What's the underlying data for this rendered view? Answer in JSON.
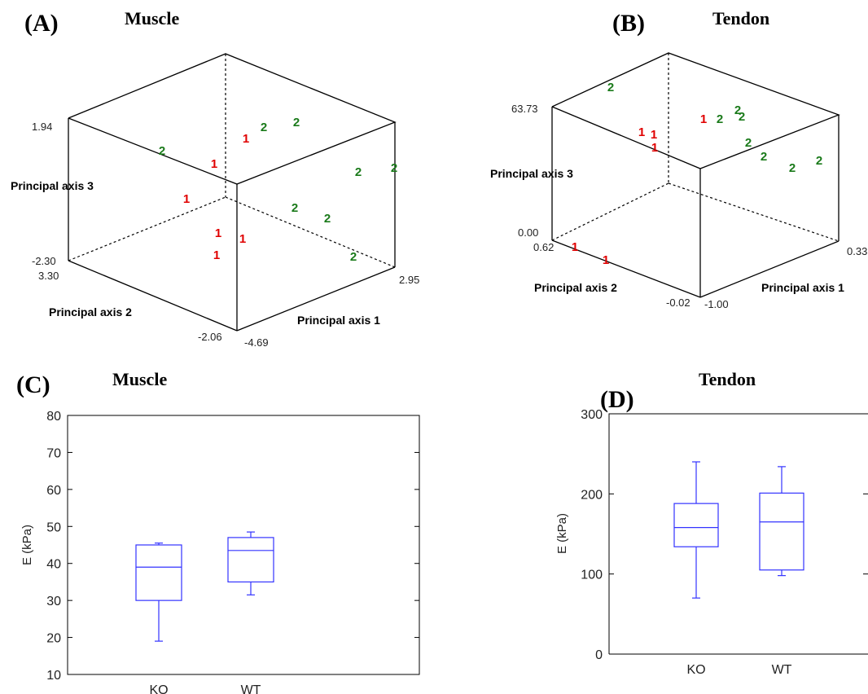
{
  "chart_data": [
    {
      "panel": "(A)",
      "type": "scatter",
      "title": "Muscle",
      "axes": {
        "x": {
          "label": "Principal axis 1",
          "min": "-4.69",
          "max": "2.95"
        },
        "y": {
          "label": "Principal axis 2",
          "min": "-2.06",
          "max": "3.30"
        },
        "z": {
          "label": "Principal axis 3",
          "min": "-2.30",
          "max": "1.94"
        }
      },
      "grid": false,
      "legend": "none",
      "colors": {
        "1": "#e00000",
        "2": "#1a7a1a"
      },
      "points": [
        {
          "label": "1"
        },
        {
          "label": "1"
        },
        {
          "label": "1"
        },
        {
          "label": "1"
        },
        {
          "label": "1"
        },
        {
          "label": "1"
        },
        {
          "label": "1"
        },
        {
          "label": "2"
        },
        {
          "label": "2"
        },
        {
          "label": "2"
        },
        {
          "label": "2"
        },
        {
          "label": "2"
        },
        {
          "label": "2"
        },
        {
          "label": "2"
        },
        {
          "label": "2"
        }
      ]
    },
    {
      "panel": "(B)",
      "type": "scatter",
      "title": "Tendon",
      "axes": {
        "x": {
          "label": "Principal axis 1",
          "min": "-1.00",
          "max": "0.33"
        },
        "y": {
          "label": "Principal axis 2",
          "min": "-0.02",
          "max": "0.62"
        },
        "z": {
          "label": "Principal axis 3",
          "min": "0.00",
          "max": "63.73"
        }
      },
      "grid": false,
      "legend": "none",
      "colors": {
        "1": "#e00000",
        "2": "#1a7a1a"
      },
      "points": [
        {
          "label": "2"
        },
        {
          "label": "1"
        },
        {
          "label": "1"
        },
        {
          "label": "1"
        },
        {
          "label": "1"
        },
        {
          "label": "2"
        },
        {
          "label": "2"
        },
        {
          "label": "2"
        },
        {
          "label": "2"
        },
        {
          "label": "2"
        },
        {
          "label": "2"
        },
        {
          "label": "2"
        },
        {
          "label": "1"
        },
        {
          "label": "1"
        }
      ]
    },
    {
      "panel": "(C)",
      "type": "box",
      "title": "Muscle",
      "ylabel": "E (kPa)",
      "ylim": [
        10,
        80
      ],
      "yticks": [
        10,
        20,
        30,
        40,
        50,
        60,
        70,
        80
      ],
      "categories": [
        "KO",
        "WT"
      ],
      "color": "#3333ff",
      "boxes": [
        {
          "name": "KO",
          "min": 19,
          "q1": 30,
          "median": 39,
          "q3": 45,
          "max": 45.5
        },
        {
          "name": "WT",
          "min": 31.5,
          "q1": 35,
          "median": 43.5,
          "q3": 47,
          "max": 48.5
        }
      ]
    },
    {
      "panel": "(D)",
      "type": "box",
      "title": "Tendon",
      "ylabel": "E (kPa)",
      "ylim": [
        0,
        300
      ],
      "yticks": [
        0,
        100,
        200,
        300
      ],
      "categories": [
        "KO",
        "WT"
      ],
      "color": "#3333ff",
      "boxes": [
        {
          "name": "KO",
          "min": 70,
          "q1": 134,
          "median": 158,
          "q3": 188,
          "max": 240
        },
        {
          "name": "WT",
          "min": 98,
          "q1": 105,
          "median": 165,
          "q3": 201,
          "max": 234
        }
      ]
    }
  ]
}
